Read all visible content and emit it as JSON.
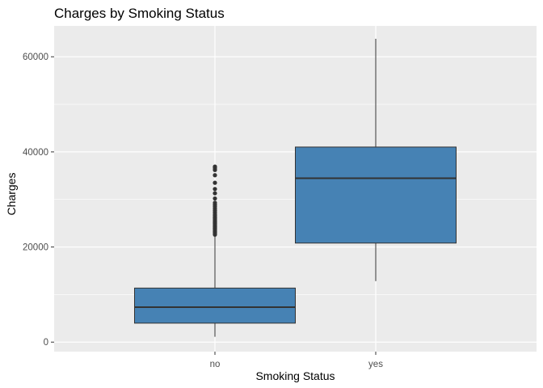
{
  "chart_data": {
    "type": "boxplot",
    "title": "Charges by Smoking Status",
    "xlabel": "Smoking Status",
    "ylabel": "Charges",
    "ylim": [
      -2000,
      66500
    ],
    "yticks": [
      0,
      20000,
      40000,
      60000
    ],
    "ytick_labels": [
      "0",
      "20000",
      "40000",
      "60000"
    ],
    "grid": true,
    "categories": [
      "no",
      "yes"
    ],
    "boxes": [
      {
        "category": "no",
        "whisker_low": 1122,
        "q1": 3986,
        "median": 7345,
        "q3": 11363,
        "whisker_high": 22400,
        "outliers": [
          22600,
          22900,
          23100,
          23300,
          23500,
          23700,
          23900,
          24100,
          24300,
          24500,
          24700,
          24900,
          25100,
          25300,
          25500,
          25700,
          25900,
          26100,
          26300,
          26600,
          26900,
          27300,
          27700,
          28100,
          28500,
          28900,
          29300,
          30200,
          31300,
          32200,
          33500,
          35100,
          36200,
          36600,
          36900
        ]
      },
      {
        "category": "yes",
        "whisker_low": 12829,
        "q1": 20826,
        "median": 34456,
        "q3": 41019,
        "whisker_high": 63770,
        "outliers": []
      }
    ],
    "colors": {
      "box_fill": "#4682b4",
      "box_stroke": "#333333",
      "panel_bg": "#ebebeb",
      "grid_major": "#ffffff",
      "outlier": "#333333"
    }
  }
}
